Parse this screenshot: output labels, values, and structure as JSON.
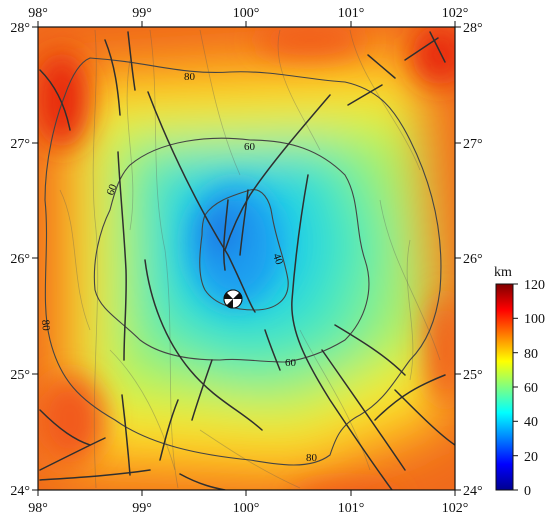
{
  "map": {
    "lon_labels": [
      "98°",
      "99°",
      "100°",
      "101°",
      "102°"
    ],
    "lat_labels": [
      "24°",
      "25°",
      "26°",
      "27°",
      "28°"
    ],
    "extent": {
      "lon": [
        98,
        102
      ],
      "lat": [
        24,
        28
      ]
    },
    "contours": [
      {
        "value": 40,
        "label": "40"
      },
      {
        "value": 60,
        "label": "60"
      },
      {
        "value": 80,
        "label": "80"
      }
    ],
    "focal_mechanism": {
      "lon": 99.9,
      "lat": 25.67,
      "icon": "beachball-focal-mechanism-icon"
    }
  },
  "colorbar": {
    "unit": "km",
    "ticks": [
      "0",
      "20",
      "40",
      "60",
      "80",
      "100",
      "120"
    ],
    "range": [
      0,
      120
    ],
    "colors": [
      "#00008f",
      "#0000ff",
      "#0080ff",
      "#00ffff",
      "#80ff80",
      "#ffff00",
      "#ff8000",
      "#ff0000",
      "#800000"
    ]
  }
}
